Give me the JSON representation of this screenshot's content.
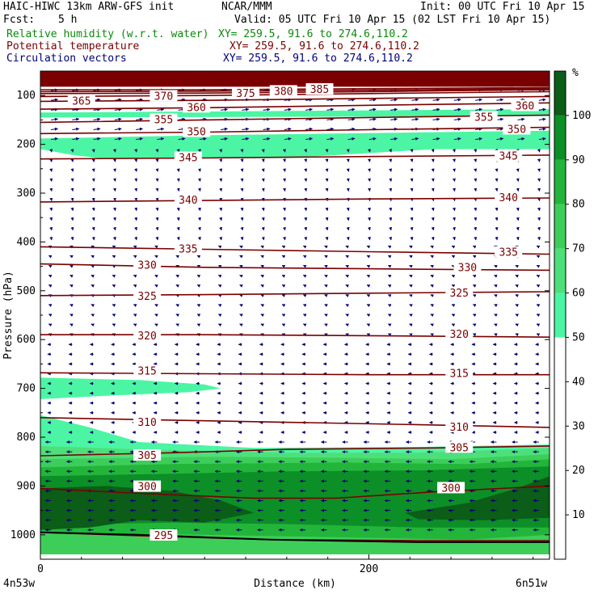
{
  "header": {
    "model": "HAIC-HIWC 13km ARW-GFS init",
    "org": "NCAR/MMM",
    "init": "Init: 00 UTC Fri 10 Apr 15",
    "fcst_label": "Fcst:",
    "fcst_value": "5 h",
    "valid": "Valid: 05 UTC Fri 10 Apr 15 (02 LST Fri 10 Apr 15)",
    "fields": [
      {
        "name": "Relative humidity (w.r.t. water)",
        "xy": "XY= 259.5, 91.6 to 274.6,110.2",
        "color": "#0a8a0a"
      },
      {
        "name": "Potential temperature",
        "xy": "XY= 259.5, 91.6 to 274.6,110.2",
        "color": "#7a0000"
      },
      {
        "name": "Circulation vectors",
        "xy": "XY= 259.5, 91.6 to 274.6,110.2",
        "color": "#00007a"
      }
    ]
  },
  "chart_data": {
    "type": "heatmap",
    "title": "HAIC-HIWC 13km ARW-GFS init",
    "xlabel": "Distance (km)",
    "ylabel": "Pressure (hPa)",
    "xlim": [
      0,
      310
    ],
    "ylim": [
      1050,
      50
    ],
    "x_ticks": [
      0,
      200
    ],
    "x_tick_labels": [
      "0",
      "200"
    ],
    "x_end_labels": {
      "left": "4n53w",
      "right": "6n51w"
    },
    "y_ticks": [
      100,
      200,
      300,
      400,
      500,
      600,
      700,
      800,
      900,
      1000
    ],
    "y_tick_labels": [
      "100",
      "200",
      "300",
      "400",
      "500",
      "600",
      "700",
      "800",
      "900",
      "1000"
    ],
    "colorbar": {
      "unit": "%",
      "levels": [
        0,
        10,
        20,
        30,
        40,
        50,
        60,
        70,
        80,
        90,
        100,
        110
      ],
      "tick_labels": [
        "10",
        "20",
        "30",
        "40",
        "50",
        "60",
        "70",
        "80",
        "90",
        "100"
      ],
      "colors": [
        "#ffffff",
        "#ffffff",
        "#ffffff",
        "#ffffff",
        "#ffffff",
        "#4cf5a3",
        "#4de07a",
        "#3dce5a",
        "#22b53a",
        "#0c8f26",
        "#0b5d17",
        "#ff8a8a"
      ]
    },
    "colors": {
      "theta_line": "#7a0000",
      "vector": "#00006e",
      "top_fill": "#7a0000"
    },
    "rh_regions": [
      {
        "level": 50,
        "polygon": [
          [
            0,
            188
          ],
          [
            90,
            182
          ],
          [
            180,
            178
          ],
          [
            310,
            172
          ],
          [
            310,
            210
          ],
          [
            240,
            210
          ],
          [
            150,
            228
          ],
          [
            40,
            230
          ],
          [
            20,
            222
          ],
          [
            0,
            210
          ]
        ]
      },
      {
        "level": 50,
        "polygon": [
          [
            0,
            135
          ],
          [
            310,
            128
          ],
          [
            310,
            142
          ],
          [
            0,
            145
          ]
        ]
      },
      {
        "level": 50,
        "polygon": [
          [
            0,
            678
          ],
          [
            60,
            683
          ],
          [
            100,
            692
          ],
          [
            110,
            700
          ],
          [
            90,
            708
          ],
          [
            40,
            715
          ],
          [
            0,
            722
          ]
        ]
      },
      {
        "level": 50,
        "polygon": [
          [
            0,
            755
          ],
          [
            30,
            780
          ],
          [
            60,
            810
          ],
          [
            130,
            822
          ],
          [
            230,
            820
          ],
          [
            310,
            815
          ],
          [
            310,
            1040
          ],
          [
            0,
            1040
          ]
        ]
      },
      {
        "level": 60,
        "polygon": [
          [
            0,
            818
          ],
          [
            60,
            825
          ],
          [
            150,
            832
          ],
          [
            230,
            832
          ],
          [
            310,
            822
          ],
          [
            310,
            1040
          ],
          [
            0,
            1040
          ]
        ]
      },
      {
        "level": 70,
        "polygon": [
          [
            0,
            845
          ],
          [
            100,
            840
          ],
          [
            180,
            842
          ],
          [
            250,
            845
          ],
          [
            310,
            835
          ],
          [
            310,
            1040
          ],
          [
            0,
            1040
          ]
        ]
      },
      {
        "level": 80,
        "polygon": [
          [
            0,
            862
          ],
          [
            80,
            855
          ],
          [
            180,
            852
          ],
          [
            260,
            855
          ],
          [
            310,
            845
          ],
          [
            310,
            1000
          ],
          [
            260,
            1010
          ],
          [
            180,
            1005
          ],
          [
            100,
            1000
          ],
          [
            0,
            995
          ]
        ]
      },
      {
        "level": 90,
        "polygon": [
          [
            0,
            880
          ],
          [
            80,
            875
          ],
          [
            150,
            870
          ],
          [
            230,
            868
          ],
          [
            310,
            860
          ],
          [
            310,
            985
          ],
          [
            230,
            985
          ],
          [
            150,
            978
          ],
          [
            80,
            975
          ],
          [
            0,
            980
          ]
        ]
      },
      {
        "level": 100,
        "polygon": [
          [
            0,
            905
          ],
          [
            40,
            900
          ],
          [
            80,
            910
          ],
          [
            110,
            930
          ],
          [
            130,
            955
          ],
          [
            100,
            975
          ],
          [
            60,
            970
          ],
          [
            30,
            985
          ],
          [
            0,
            990
          ]
        ]
      },
      {
        "level": 100,
        "polygon": [
          [
            222,
            955
          ],
          [
            260,
            935
          ],
          [
            290,
            905
          ],
          [
            310,
            880
          ],
          [
            310,
            965
          ],
          [
            270,
            970
          ],
          [
            230,
            968
          ]
        ]
      }
    ],
    "theta_contours": [
      {
        "value": 295,
        "x": [
          0,
          60,
          140,
          230,
          310
        ],
        "p": [
          995,
          1002,
          1010,
          1012,
          1012
        ],
        "labels": [
          [
            75,
            1002
          ]
        ]
      },
      {
        "value": 300,
        "x": [
          0,
          60,
          130,
          180,
          240,
          310
        ],
        "p": [
          905,
          915,
          925,
          925,
          912,
          900
        ],
        "labels": [
          [
            65,
            902
          ],
          [
            250,
            905
          ]
        ]
      },
      {
        "value": 305,
        "x": [
          0,
          80,
          150,
          240,
          310
        ],
        "p": [
          838,
          832,
          825,
          822,
          818
        ],
        "labels": [
          [
            65,
            838
          ],
          [
            255,
            822
          ]
        ]
      },
      {
        "value": 310,
        "x": [
          0,
          80,
          160,
          240,
          310
        ],
        "p": [
          760,
          765,
          770,
          775,
          780
        ],
        "labels": [
          [
            65,
            770
          ],
          [
            255,
            780
          ]
        ]
      },
      {
        "value": 315,
        "x": [
          0,
          100,
          200,
          310
        ],
        "p": [
          668,
          670,
          672,
          672
        ],
        "labels": [
          [
            65,
            665
          ],
          [
            255,
            670
          ]
        ]
      },
      {
        "value": 320,
        "x": [
          0,
          100,
          200,
          310
        ],
        "p": [
          590,
          590,
          592,
          595
        ],
        "labels": [
          [
            65,
            593
          ],
          [
            255,
            590
          ]
        ]
      },
      {
        "value": 325,
        "x": [
          0,
          100,
          200,
          310
        ],
        "p": [
          510,
          508,
          505,
          502
        ],
        "labels": [
          [
            65,
            512
          ],
          [
            255,
            505
          ]
        ]
      },
      {
        "value": 330,
        "x": [
          0,
          100,
          200,
          310
        ],
        "p": [
          445,
          452,
          455,
          458
        ],
        "labels": [
          [
            65,
            448
          ],
          [
            260,
            453
          ]
        ]
      },
      {
        "value": 335,
        "x": [
          0,
          100,
          200,
          310
        ],
        "p": [
          410,
          415,
          420,
          425
        ],
        "labels": [
          [
            90,
            415
          ],
          [
            285,
            422
          ]
        ]
      },
      {
        "value": 340,
        "x": [
          0,
          100,
          200,
          310
        ],
        "p": [
          318,
          315,
          312,
          310
        ],
        "labels": [
          [
            90,
            315
          ],
          [
            285,
            310
          ]
        ]
      },
      {
        "value": 345,
        "x": [
          0,
          100,
          200,
          310
        ],
        "p": [
          230,
          228,
          225,
          222
        ],
        "labels": [
          [
            90,
            228
          ],
          [
            285,
            225
          ]
        ]
      },
      {
        "value": 350,
        "x": [
          0,
          100,
          200,
          310
        ],
        "p": [
          178,
          175,
          170,
          165
        ],
        "labels": [
          [
            95,
            175
          ],
          [
            290,
            170
          ]
        ]
      },
      {
        "value": 355,
        "x": [
          0,
          100,
          200,
          310
        ],
        "p": [
          155,
          150,
          145,
          140
        ],
        "labels": [
          [
            75,
            150
          ],
          [
            270,
            145
          ]
        ]
      },
      {
        "value": 360,
        "x": [
          0,
          100,
          200,
          310
        ],
        "p": [
          128,
          125,
          120,
          115
        ],
        "labels": [
          [
            95,
            125
          ],
          [
            295,
            122
          ]
        ]
      },
      {
        "value": 365,
        "x": [
          0,
          100,
          200,
          310
        ],
        "p": [
          112,
          110,
          106,
          102
        ],
        "labels": [
          [
            25,
            112
          ]
        ]
      },
      {
        "value": 370,
        "x": [
          0,
          100,
          200,
          310
        ],
        "p": [
          102,
          100,
          96,
          92
        ],
        "labels": [
          [
            75,
            102
          ]
        ]
      },
      {
        "value": 375,
        "x": [
          0,
          100,
          200,
          310
        ],
        "p": [
          96,
          95,
          92,
          88
        ],
        "labels": [
          [
            125,
            96
          ]
        ]
      },
      {
        "value": 380,
        "x": [
          0,
          100,
          200,
          310
        ],
        "p": [
          92,
          91,
          89,
          86
        ],
        "labels": [
          [
            148,
            92
          ]
        ]
      },
      {
        "value": 385,
        "x": [
          0,
          100,
          200,
          310
        ],
        "p": [
          88,
          88,
          86,
          84
        ],
        "labels": [
          [
            170,
            88
          ]
        ]
      }
    ],
    "top_fill_above_hpa": 82,
    "surface_hpa": [
      995,
      1000,
      1010,
      1015,
      1015
    ],
    "surface_x": [
      0,
      60,
      140,
      230,
      310
    ],
    "vector_bands": [
      {
        "p_top": 80,
        "p_bot": 200,
        "u": 6,
        "w": -1
      },
      {
        "p_top": 200,
        "p_bot": 400,
        "u": 0.6,
        "w": 3
      },
      {
        "p_top": 400,
        "p_bot": 600,
        "u": -2,
        "w": -1
      },
      {
        "p_top": 600,
        "p_bot": 800,
        "u": -3,
        "w": 0
      },
      {
        "p_top": 800,
        "p_bot": 1000,
        "u": -5,
        "w": 0
      }
    ]
  }
}
